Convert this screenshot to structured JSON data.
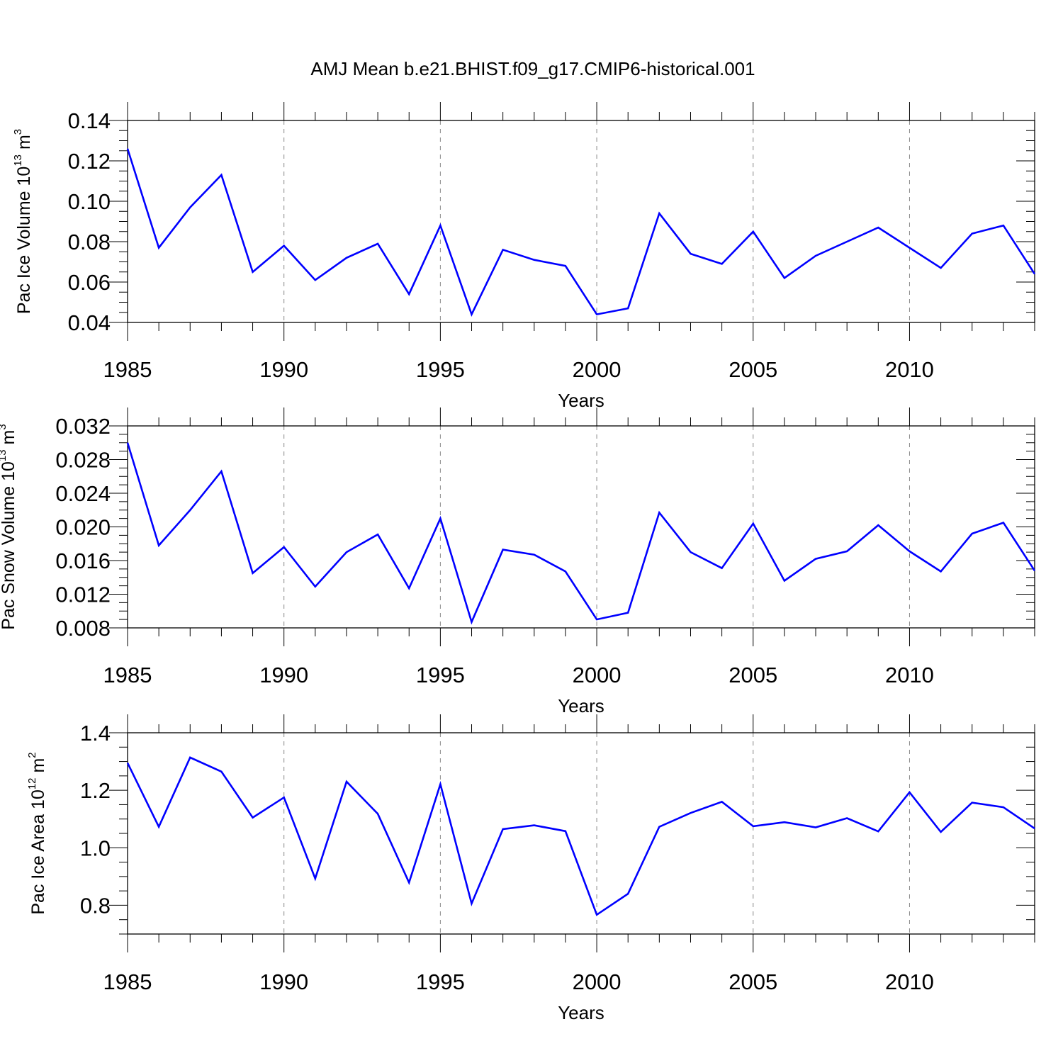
{
  "title": "AMJ Mean b.e21.BHIST.f09_g17.CMIP6-historical.001",
  "chart_data": [
    {
      "type": "line",
      "ylabel": {
        "text": "Pac Ice Volume 10",
        "sup1": "13",
        "mid": " m",
        "sup2": "3"
      },
      "xlabel": "Years",
      "xlim": [
        1985,
        2014
      ],
      "ylim": [
        0.04,
        0.14
      ],
      "yticks": [
        0.04,
        0.06,
        0.08,
        0.1,
        0.12,
        0.14
      ],
      "ytick_labels": [
        "0.04",
        "0.06",
        "0.08",
        "0.10",
        "0.12",
        "0.14"
      ],
      "y_minor_step": 0.005,
      "xticks": [
        1985,
        1990,
        1995,
        2000,
        2005,
        2010
      ],
      "xtick_labels": [
        "1985",
        "1990",
        "1995",
        "2000",
        "2005",
        "2010"
      ],
      "x": [
        1985,
        1986,
        1987,
        1988,
        1989,
        1990,
        1991,
        1992,
        1993,
        1994,
        1995,
        1996,
        1997,
        1998,
        1999,
        2000,
        2001,
        2002,
        2003,
        2004,
        2005,
        2006,
        2007,
        2008,
        2009,
        2010,
        2011,
        2012,
        2013,
        2014
      ],
      "series": [
        {
          "values": [
            0.126,
            0.077,
            0.097,
            0.113,
            0.065,
            0.078,
            0.061,
            0.072,
            0.079,
            0.054,
            0.088,
            0.044,
            0.076,
            0.071,
            0.068,
            0.044,
            0.047,
            0.094,
            0.074,
            0.069,
            0.085,
            0.062,
            0.073,
            0.08,
            0.087,
            0.077,
            0.067,
            0.084,
            0.088,
            0.064
          ],
          "color": "#0000ff"
        }
      ],
      "grid": "dashed vertical lines at major years"
    },
    {
      "type": "line",
      "ylabel": {
        "text": "Pac Snow Volume 10",
        "sup1": "13",
        "mid": " m",
        "sup2": "3"
      },
      "xlabel": "Years",
      "xlim": [
        1985,
        2014
      ],
      "ylim": [
        0.008,
        0.032
      ],
      "yticks": [
        0.008,
        0.012,
        0.016,
        0.02,
        0.024,
        0.028,
        0.032
      ],
      "ytick_labels": [
        "0.008",
        "0.012",
        "0.016",
        "0.020",
        "0.024",
        "0.028",
        "0.032"
      ],
      "y_minor_step": 0.001,
      "xticks": [
        1985,
        1990,
        1995,
        2000,
        2005,
        2010
      ],
      "xtick_labels": [
        "1985",
        "1990",
        "1995",
        "2000",
        "2005",
        "2010"
      ],
      "x": [
        1985,
        1986,
        1987,
        1988,
        1989,
        1990,
        1991,
        1992,
        1993,
        1994,
        1995,
        1996,
        1997,
        1998,
        1999,
        2000,
        2001,
        2002,
        2003,
        2004,
        2005,
        2006,
        2007,
        2008,
        2009,
        2010,
        2011,
        2012,
        2013,
        2014
      ],
      "series": [
        {
          "values": [
            0.03,
            0.0178,
            0.022,
            0.0266,
            0.0145,
            0.0176,
            0.0129,
            0.017,
            0.0191,
            0.0127,
            0.021,
            0.0087,
            0.0173,
            0.0167,
            0.0147,
            0.009,
            0.0098,
            0.0217,
            0.017,
            0.0151,
            0.0204,
            0.0136,
            0.0162,
            0.0171,
            0.0202,
            0.0171,
            0.0147,
            0.0192,
            0.0205,
            0.0148
          ],
          "color": "#0000ff"
        }
      ],
      "grid": "dashed vertical lines at major years"
    },
    {
      "type": "line",
      "ylabel": {
        "text": "Pac Ice Area 10",
        "sup1": "12",
        "mid": " m",
        "sup2": "2"
      },
      "xlabel": "Years",
      "xlim": [
        1985,
        2014
      ],
      "ylim": [
        0.7,
        1.4
      ],
      "yticks": [
        0.8,
        1.0,
        1.2,
        1.4
      ],
      "ytick_labels": [
        "0.8",
        "1.0",
        "1.2",
        "1.4"
      ],
      "y_minor_step": 0.05,
      "xticks": [
        1985,
        1990,
        1995,
        2000,
        2005,
        2010
      ],
      "xtick_labels": [
        "1985",
        "1990",
        "1995",
        "2000",
        "2005",
        "2010"
      ],
      "x": [
        1985,
        1986,
        1987,
        1988,
        1989,
        1990,
        1991,
        1992,
        1993,
        1994,
        1995,
        1996,
        1997,
        1998,
        1999,
        2000,
        2001,
        2002,
        2003,
        2004,
        2005,
        2006,
        2007,
        2008,
        2009,
        2010,
        2011,
        2012,
        2013,
        2014
      ],
      "series": [
        {
          "values": [
            1.295,
            1.073,
            1.314,
            1.265,
            1.105,
            1.175,
            0.893,
            1.23,
            1.118,
            0.879,
            1.221,
            0.806,
            1.065,
            1.078,
            1.058,
            0.767,
            0.84,
            1.073,
            1.121,
            1.16,
            1.075,
            1.089,
            1.071,
            1.103,
            1.057,
            1.193,
            1.055,
            1.157,
            1.141,
            1.067
          ],
          "color": "#0000ff"
        }
      ],
      "grid": "dashed vertical lines at major years"
    }
  ]
}
